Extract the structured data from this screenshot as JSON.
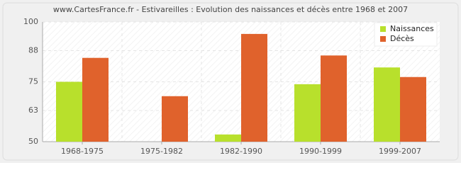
{
  "chart_data": {
    "type": "bar",
    "title": "www.CartesFrance.fr - Estivareilles : Evolution des naissances et décès entre 1968 et 2007",
    "categories": [
      "1968-1975",
      "1975-1982",
      "1982-1990",
      "1990-1999",
      "1999-2007"
    ],
    "series": [
      {
        "name": "Naissances",
        "color": "#b8e02c",
        "values": [
          75,
          50,
          53,
          74,
          81
        ]
      },
      {
        "name": "Décès",
        "color": "#e0622c",
        "values": [
          85,
          69,
          95,
          86,
          77
        ]
      }
    ],
    "ylim": [
      50,
      100
    ],
    "yticks": [
      50,
      63,
      75,
      88,
      100
    ],
    "grid": true,
    "legend": "top-right"
  }
}
